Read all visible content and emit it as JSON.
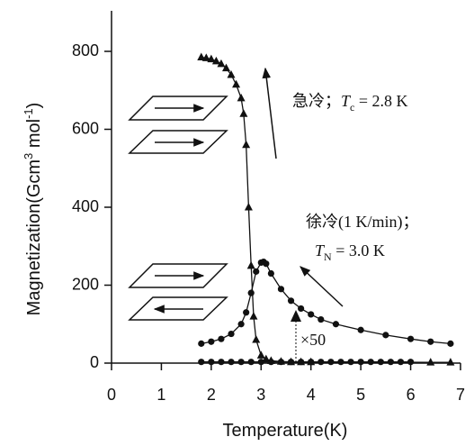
{
  "chart_data": {
    "type": "scatter",
    "ylabel": [
      "Magnetization(Gcm",
      "3",
      " mol",
      "-1",
      ")"
    ],
    "xlabel": "Temperature(K)",
    "xlim": [
      0,
      7
    ],
    "xticks": [
      0,
      1,
      2,
      3,
      4,
      5,
      6,
      7
    ],
    "ylim": [
      0,
      800
    ],
    "yticks": [
      0,
      200,
      400,
      600,
      800
    ],
    "annotations": [
      [
        "急冷；",
        "T",
        "c",
        " = 2.8 K"
      ],
      [
        "徐冷(1 K/min)；"
      ],
      [
        "T",
        "N",
        " = 3.0 K"
      ],
      [
        "×50"
      ]
    ],
    "series": [
      {
        "marker": "triangle",
        "color": "#111111",
        "x": [
          1.8,
          1.9,
          2.0,
          2.1,
          2.2,
          2.3,
          2.4,
          2.5,
          2.6,
          2.65,
          2.7,
          2.75,
          2.8,
          2.85,
          2.9,
          3.0,
          3.1,
          3.2,
          3.4,
          3.6,
          3.8,
          4.0,
          6.4,
          6.8
        ],
        "values": [
          785,
          783,
          780,
          775,
          768,
          757,
          740,
          715,
          680,
          640,
          560,
          400,
          250,
          120,
          60,
          20,
          10,
          6,
          4,
          3,
          3,
          3,
          2,
          2
        ]
      },
      {
        "marker": "circle",
        "color": "#111111",
        "x": [
          1.8,
          2.0,
          2.2,
          2.4,
          2.6,
          2.7,
          2.8,
          2.9,
          3.0,
          3.05,
          3.1,
          3.2,
          3.4,
          3.6,
          3.8,
          4.0,
          4.2,
          4.5,
          5.0,
          5.5,
          6.0,
          6.4,
          6.8
        ],
        "values": [
          50,
          55,
          62,
          75,
          100,
          130,
          180,
          235,
          258,
          260,
          255,
          230,
          190,
          160,
          140,
          125,
          112,
          100,
          85,
          72,
          62,
          55,
          50
        ]
      },
      {
        "marker": "circle",
        "color": "#111111",
        "x": [
          1.8,
          2.0,
          2.2,
          2.4,
          2.6,
          2.8,
          3.0,
          3.2,
          3.4,
          3.6,
          3.8,
          4.0,
          4.2,
          4.4,
          4.6,
          4.8,
          5.0,
          5.2,
          5.4,
          5.6,
          5.8,
          6.0
        ],
        "values": [
          3,
          3,
          3,
          3,
          3,
          3,
          3,
          3,
          3,
          3,
          3,
          3,
          3,
          3,
          3,
          3,
          3,
          3,
          3,
          3,
          3,
          3
        ]
      }
    ]
  }
}
